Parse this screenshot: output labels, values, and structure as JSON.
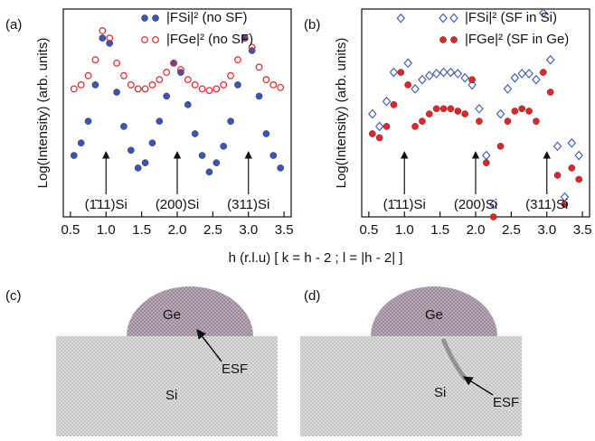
{
  "chart_data": [
    {
      "type": "scatter",
      "panel_label": "(a)",
      "ylabel": "Log(Intensity) (arb. units)",
      "log_scale": true,
      "legend": "top-right",
      "xlim": [
        0.4,
        3.6
      ],
      "xticks": [
        0.5,
        {
          "value": 1,
          "label": "1.0"
        },
        1.5,
        {
          "value": 2,
          "label": "2.0"
        },
        2.5,
        {
          "value": 3,
          "label": "3.0"
        },
        3.5
      ],
      "ylim": [
        1,
        100000
      ],
      "x": [
        0.55,
        0.65,
        0.75,
        0.85,
        0.95,
        1.05,
        1.15,
        1.25,
        1.35,
        1.45,
        1.55,
        1.65,
        1.75,
        1.85,
        1.95,
        2.05,
        2.15,
        2.25,
        2.35,
        2.45,
        2.55,
        2.65,
        2.75,
        2.85,
        2.95,
        3.05,
        3.15,
        3.25,
        3.35,
        3.45
      ],
      "series": [
        {
          "name": "|FSi|² (no SF)",
          "color": "#3a55b4",
          "marker": "filled-circle",
          "values": [
            30,
            60,
            200,
            1500,
            20000,
            15000,
            1000,
            150,
            40,
            15,
            20,
            60,
            200,
            800,
            5000,
            3000,
            500,
            100,
            30,
            12,
            20,
            50,
            200,
            1500,
            20000,
            10000,
            800,
            100,
            30,
            15
          ]
        },
        {
          "name": "|FGe|² (no SF)",
          "color": "#e0262b",
          "marker": "open-circle",
          "values": [
            1200,
            1500,
            2500,
            6000,
            30000,
            20000,
            5000,
            2500,
            1500,
            1200,
            1200,
            1500,
            2000,
            3000,
            5000,
            3500,
            2000,
            1500,
            1200,
            1100,
            1200,
            1500,
            2500,
            6000,
            20000,
            12000,
            4000,
            2000,
            1500,
            1300
          ]
        }
      ],
      "annotations": [
        "(1̄11)Si",
        "(200)Si",
        "(311)Si"
      ]
    },
    {
      "type": "scatter",
      "panel_label": "(b)",
      "ylabel": "Log(Intensity) (arb. units)",
      "log_scale": true,
      "legend": "top-right",
      "xlim": [
        0.4,
        3.6
      ],
      "xticks": [
        0.5,
        {
          "value": 1,
          "label": "1.0"
        },
        1.5,
        {
          "value": 2,
          "label": "2.0"
        },
        2.5,
        {
          "value": 3,
          "label": "3.0"
        },
        3.5
      ],
      "ylim": [
        1,
        100000
      ],
      "x": [
        0.55,
        0.65,
        0.75,
        0.85,
        0.95,
        1.05,
        1.15,
        1.25,
        1.35,
        1.45,
        1.55,
        1.65,
        1.75,
        1.85,
        1.95,
        2.05,
        2.15,
        2.25,
        2.35,
        2.45,
        2.55,
        2.65,
        2.75,
        2.85,
        2.95,
        3.05,
        3.15,
        3.25,
        3.35,
        3.45
      ],
      "series": [
        {
          "name": "|FSi|² (SF in Si)",
          "color": "#3a55b4",
          "marker": "open-diamond",
          "values": [
            300,
            150,
            600,
            3000,
            60000,
            5000,
            1200,
            2000,
            2500,
            2800,
            3000,
            3000,
            2800,
            2200,
            1500,
            400,
            30,
            2,
            300,
            1200,
            2200,
            2800,
            2800,
            2000,
            80000,
            6000,
            50,
            3,
            60,
            30
          ]
        },
        {
          "name": "|FGe|² (SF in Ge)",
          "color": "#e0262b",
          "marker": "filled-circle",
          "values": [
            100,
            80,
            150,
            500,
            3000,
            1500,
            150,
            200,
            300,
            400,
            400,
            400,
            350,
            300,
            2000,
            200,
            20,
            1,
            50,
            200,
            350,
            400,
            350,
            200,
            3000,
            1000,
            10,
            2,
            15,
            8
          ]
        }
      ],
      "annotations": [
        "(1̄11)Si",
        "(200)Si",
        "(311)Si"
      ]
    }
  ],
  "xlabel": "h (r.l.u)  [ k = h - 2 ; l = |h - 2| ]",
  "panels": [
    {
      "label": "(c)",
      "ge": "Ge",
      "esf": "ESF",
      "si": "Si"
    },
    {
      "label": "(d)",
      "ge": "Ge",
      "esf": "ESF",
      "si": "Si"
    }
  ]
}
